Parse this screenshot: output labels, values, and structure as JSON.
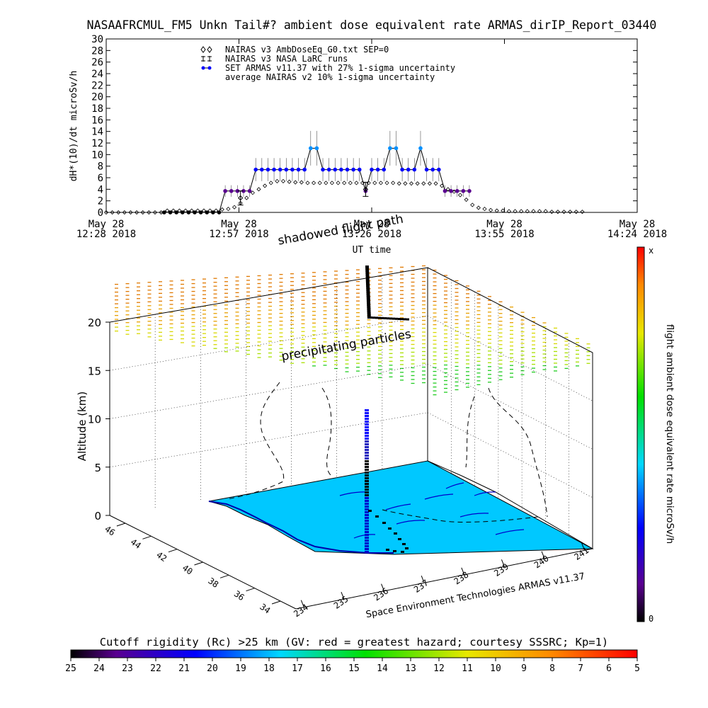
{
  "title": "NASAAFRCMUL_FM5 Unkn Tail#? ambient dose equivalent rate ARMAS_dirIP_Report_03440",
  "chart_data": [
    {
      "type": "line",
      "title": "NASAAFRCMUL_FM5 Unkn Tail#? ambient dose equivalent rate ARMAS_dirIP_Report_03440",
      "ylabel": "dH*(10)/dt microSv/h",
      "xlabel": "UT time",
      "ylim": [
        0,
        30
      ],
      "yticks": [
        "0",
        "2",
        "4",
        "6",
        "8",
        "10",
        "12",
        "14",
        "16",
        "18",
        "20",
        "22",
        "24",
        "26",
        "28",
        "30"
      ],
      "xticks": [
        {
          "top": "May 28",
          "bottom": "12:28 2018"
        },
        {
          "top": "May 28",
          "bottom": "12:57 2018"
        },
        {
          "top": "May 28",
          "bottom": "13:26 2018"
        },
        {
          "top": "May 28",
          "bottom": "13:55 2018"
        },
        {
          "top": "May 28",
          "bottom": "14:24 2018"
        }
      ],
      "x_unit": "minutes after 12:28",
      "legend": [
        "NAIRAS v3 AmbDoseEq_G0.txt SEP=0",
        "NAIRAS v3 NASA LaRC runs",
        "SET ARMAS v11.37 with 27% 1-sigma uncertainty",
        "average NAIRAS v2 10% 1-sigma uncertainty"
      ],
      "legend_placement": "top-left",
      "series": [
        {
          "name": "SET ARMAS v11.37 with 27% 1-sigma uncertainty",
          "x": [
            19,
            21,
            23,
            25,
            27,
            29,
            31,
            33,
            35,
            37,
            39,
            41,
            43,
            45,
            47,
            49,
            51,
            53,
            55,
            57,
            59,
            61,
            63,
            65,
            67,
            69,
            71,
            73,
            75,
            77,
            79,
            81,
            83,
            85,
            87,
            89,
            91,
            93,
            95,
            97,
            99,
            101,
            103,
            105,
            107,
            109,
            111,
            113,
            115,
            117,
            119
          ],
          "values": [
            0,
            0,
            0,
            0,
            0,
            0,
            0,
            0,
            0,
            0,
            3.7,
            3.7,
            3.7,
            3.7,
            3.7,
            7.4,
            7.4,
            7.4,
            7.4,
            7.4,
            7.4,
            7.4,
            7.4,
            7.4,
            11.1,
            11.1,
            7.4,
            7.4,
            7.4,
            7.4,
            7.4,
            7.4,
            7.4,
            3.7,
            7.4,
            7.4,
            7.4,
            11.1,
            11.1,
            7.4,
            7.4,
            7.4,
            11.1,
            7.4,
            7.4,
            7.4,
            3.7,
            3.7,
            3.7,
            3.7,
            3.7
          ],
          "color": "#0000ff"
        },
        {
          "name": "NAIRAS v3 AmbDoseEq_G0.txt SEP=0",
          "x": [
            0,
            2,
            4,
            6,
            8,
            10,
            12,
            14,
            16,
            18,
            20,
            22,
            24,
            26,
            28,
            30,
            32,
            34,
            36,
            38,
            40,
            42,
            44,
            46,
            48,
            50,
            52,
            54,
            56,
            58,
            60,
            62,
            64,
            66,
            68,
            70,
            72,
            74,
            76,
            78,
            80,
            82,
            84,
            86,
            88,
            90,
            92,
            94,
            96,
            98,
            100,
            102,
            104,
            106,
            108,
            110,
            112,
            114,
            116,
            118,
            120,
            122,
            124,
            126,
            128,
            130,
            132,
            134,
            136,
            138,
            140,
            142,
            144,
            146,
            148,
            150,
            152,
            154,
            156
          ],
          "values": [
            0,
            0,
            0,
            0,
            0,
            0,
            0,
            0,
            0,
            0,
            0.3,
            0.3,
            0.3,
            0.3,
            0.3,
            0.3,
            0.3,
            0.3,
            0.3,
            0.5,
            0.6,
            0.9,
            1.6,
            2.5,
            3.4,
            4.0,
            4.6,
            5.1,
            5.4,
            5.4,
            5.3,
            5.2,
            5.2,
            5.1,
            5.1,
            5.1,
            5.1,
            5.1,
            5.1,
            5.1,
            5.1,
            5.1,
            5.1,
            5.1,
            5.1,
            5.1,
            5.1,
            5.1,
            5.0,
            5.0,
            5.0,
            5.0,
            5.0,
            5.0,
            5.0,
            4.6,
            4.0,
            3.6,
            3.0,
            2.2,
            1.3,
            0.8,
            0.6,
            0.4,
            0.3,
            0.3,
            0.2,
            0.2,
            0.2,
            0.2,
            0.2,
            0.2,
            0.2,
            0.1,
            0.1,
            0.1,
            0.1,
            0.1,
            0.1
          ],
          "color": "#000000"
        },
        {
          "name": "NAIRAS v3 NASA LaRC runs",
          "x": [
            44,
            85
          ],
          "values": [
            2.5,
            4.0
          ],
          "color": "#000000"
        }
      ]
    },
    {
      "type": "line",
      "title": "",
      "ylabel": "Altitude (km)",
      "zticks": [
        "0",
        "5",
        "10",
        "15",
        "20"
      ],
      "lat_ticks": [
        "34",
        "36",
        "38",
        "40",
        "42",
        "44",
        "46"
      ],
      "lon_ticks": [
        "234",
        "235",
        "236",
        "237",
        "238",
        "239",
        "240",
        "241"
      ],
      "annotations": [
        "shadowed flight path",
        "precipitating particles"
      ],
      "credit": "Space Environment Technologies ARMAS v11.37",
      "colorbar_label": "flight ambient dose equivalent rate microSv/h",
      "colorbar_ticks": [
        "0",
        "x"
      ]
    },
    {
      "type": "heatmap",
      "title": "Cutoff rigidity (Rc) >25 km (GV: red = greatest hazard; courtesy SSSRC; Kp=1)",
      "ticks": [
        "25",
        "24",
        "23",
        "22",
        "21",
        "20",
        "19",
        "18",
        "17",
        "16",
        "15",
        "14",
        "13",
        "12",
        "11",
        "10",
        "9",
        "8",
        "7",
        "6",
        "5"
      ]
    }
  ]
}
